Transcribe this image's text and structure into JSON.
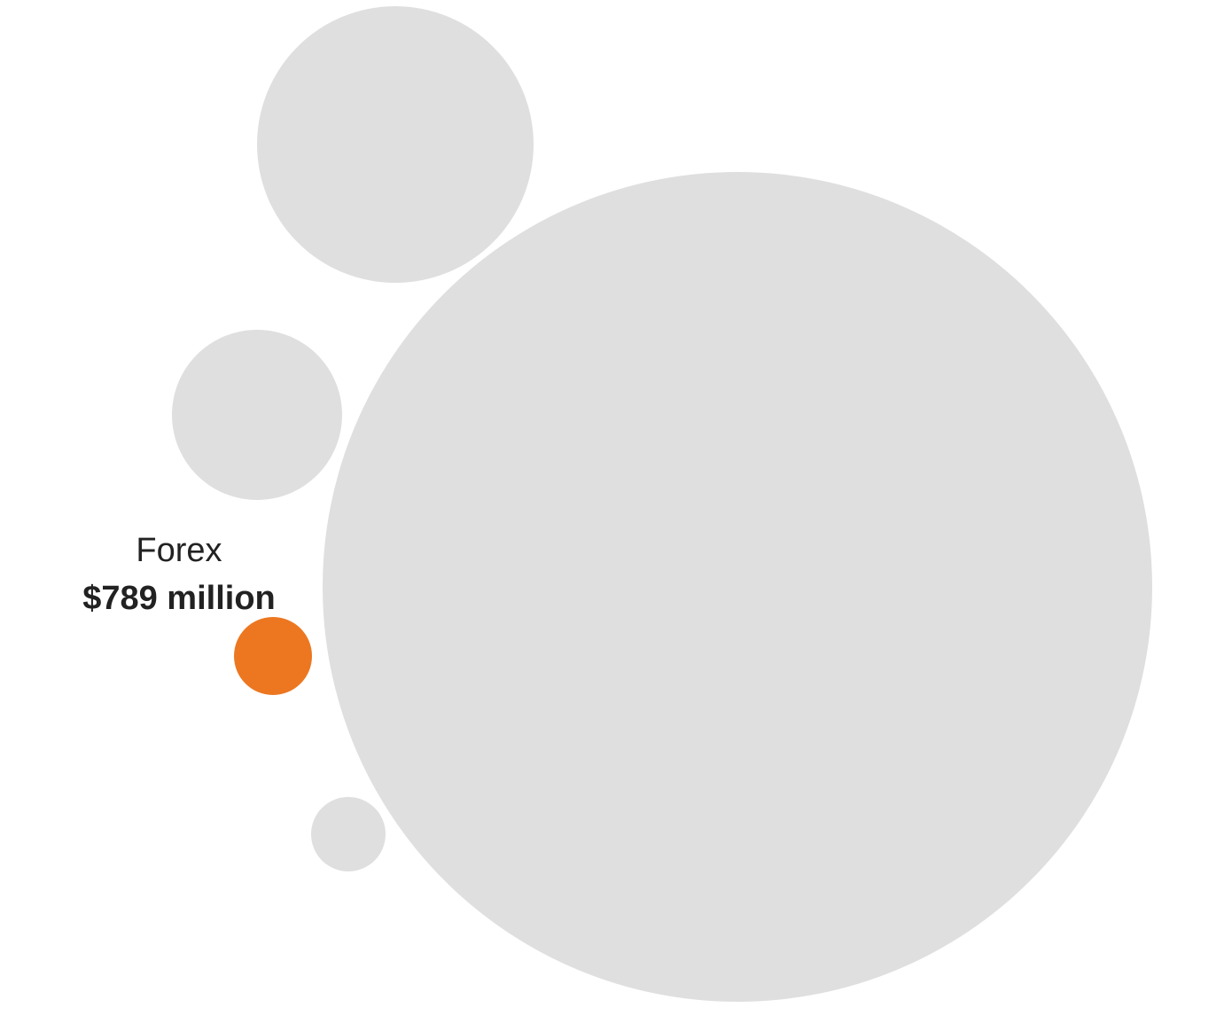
{
  "chart_data": {
    "type": "bubble",
    "title": "",
    "highlight_color": "#EC7720",
    "base_color": "#DFDFDF",
    "text_color": "#222222",
    "bubbles": [
      {
        "name": "",
        "value": null,
        "highlighted": false
      },
      {
        "name": "",
        "value": null,
        "highlighted": false
      },
      {
        "name": "",
        "value": null,
        "highlighted": false
      },
      {
        "name": "Forex",
        "value_label": "$789 million",
        "value": 789,
        "highlighted": true
      },
      {
        "name": "",
        "value": null,
        "highlighted": false
      }
    ]
  }
}
